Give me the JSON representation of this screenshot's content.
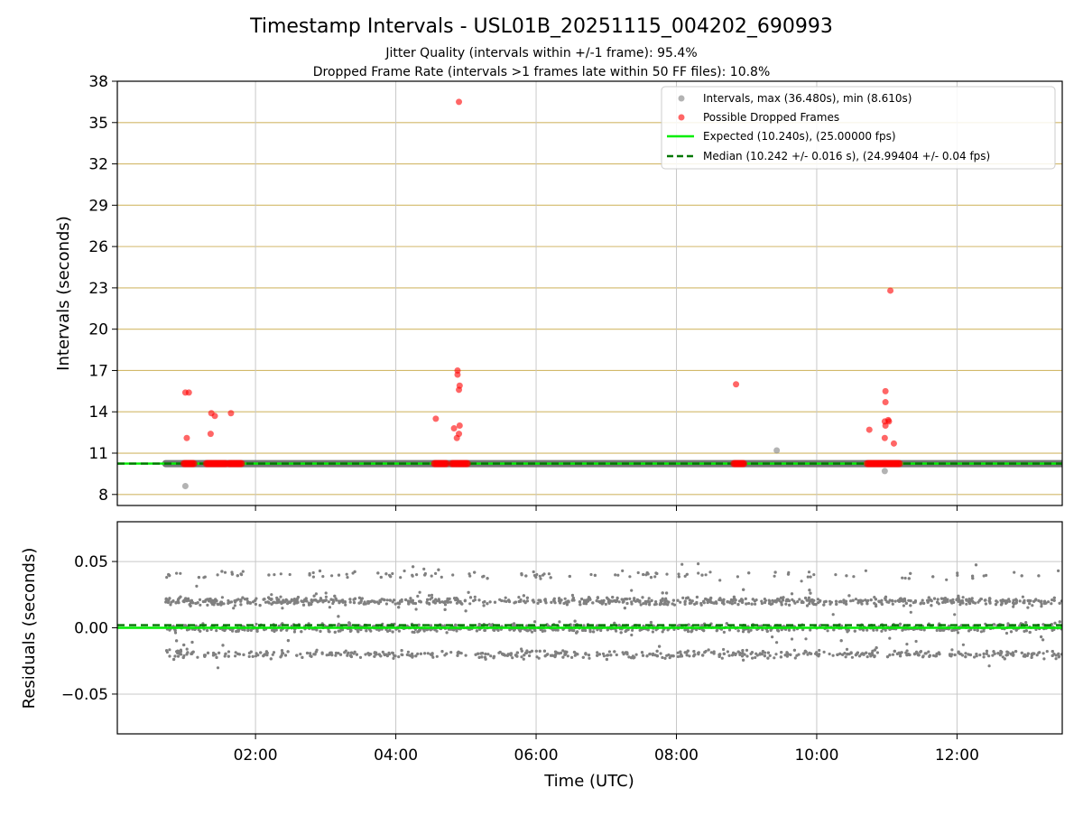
{
  "chart_data": [
    {
      "type": "scatter",
      "panel": "intervals",
      "title": "Timestamp Intervals - USL01B_20251115_004202_690993",
      "subtitle_lines": [
        "Jitter Quality (intervals within +/-1 frame): 95.4%",
        "Dropped Frame Rate (intervals >1 frames late within 50 FF files): 10.8%"
      ],
      "xlabel": "",
      "ylabel": "Intervals (seconds)",
      "xlim_hours": [
        0.03,
        13.5
      ],
      "ylim": [
        7.2,
        38
      ],
      "yticks": [
        8,
        11,
        14,
        17,
        20,
        23,
        26,
        29,
        32,
        35,
        38
      ],
      "ytick_labels": [
        "8",
        "11",
        "14",
        "17",
        "20",
        "23",
        "26",
        "29",
        "32",
        "35",
        "38"
      ],
      "xticks_hours": [
        2,
        4,
        6,
        8,
        10,
        12
      ],
      "grid": true,
      "legend_position": "top-right",
      "legend": [
        {
          "label": "Intervals, max (36.480s), min (8.610s)",
          "kind": "dot",
          "color": "#808080"
        },
        {
          "label": "Possible Dropped Frames",
          "kind": "dot",
          "color": "#ff0000"
        },
        {
          "label": "Expected (10.240s), (25.00000 fps)",
          "kind": "line",
          "color": "#00ee00"
        },
        {
          "label": "Median (10.242 +/- 0.016 s), (24.99404 +/- 0.04 fps)",
          "kind": "dash",
          "color": "#007700"
        }
      ],
      "expected": 10.24,
      "median": 10.242,
      "baseline_band": {
        "from_hours": 0.72,
        "to_hours": 13.5,
        "value": 10.24
      },
      "interval_outliers": [
        {
          "x": 1.0,
          "y": 8.61
        },
        {
          "x": 9.43,
          "y": 11.2
        },
        {
          "x": 10.97,
          "y": 9.7
        }
      ],
      "dropped_frames": [
        {
          "x": 1.0,
          "y": 15.4
        },
        {
          "x": 1.05,
          "y": 15.4
        },
        {
          "x": 1.02,
          "y": 12.1
        },
        {
          "x": 1.37,
          "y": 13.9
        },
        {
          "x": 1.42,
          "y": 13.7
        },
        {
          "x": 1.65,
          "y": 13.9
        },
        {
          "x": 1.36,
          "y": 12.4
        },
        {
          "x": 4.57,
          "y": 13.5
        },
        {
          "x": 4.83,
          "y": 12.8
        },
        {
          "x": 4.88,
          "y": 17.0
        },
        {
          "x": 4.88,
          "y": 16.7
        },
        {
          "x": 4.91,
          "y": 15.9
        },
        {
          "x": 4.9,
          "y": 15.6
        },
        {
          "x": 4.91,
          "y": 13.0
        },
        {
          "x": 4.9,
          "y": 12.4
        },
        {
          "x": 4.87,
          "y": 12.1
        },
        {
          "x": 4.9,
          "y": 36.5
        },
        {
          "x": 8.85,
          "y": 16.0
        },
        {
          "x": 10.75,
          "y": 12.7
        },
        {
          "x": 10.98,
          "y": 15.5
        },
        {
          "x": 10.98,
          "y": 14.7
        },
        {
          "x": 10.97,
          "y": 13.3
        },
        {
          "x": 11.02,
          "y": 13.4
        },
        {
          "x": 11.03,
          "y": 13.3
        },
        {
          "x": 10.98,
          "y": 13.0
        },
        {
          "x": 10.97,
          "y": 12.1
        },
        {
          "x": 11.1,
          "y": 11.7
        },
        {
          "x": 11.05,
          "y": 22.8
        }
      ],
      "dropped_frame_clusters": [
        {
          "from_hours": 0.98,
          "to_hours": 1.12,
          "y": 10.24
        },
        {
          "from_hours": 1.3,
          "to_hours": 1.58,
          "y": 10.24
        },
        {
          "from_hours": 1.62,
          "to_hours": 1.8,
          "y": 10.24
        },
        {
          "from_hours": 4.55,
          "to_hours": 4.72,
          "y": 10.24
        },
        {
          "from_hours": 4.8,
          "to_hours": 5.02,
          "y": 10.24
        },
        {
          "from_hours": 8.82,
          "to_hours": 8.96,
          "y": 10.24
        },
        {
          "from_hours": 10.72,
          "to_hours": 11.18,
          "y": 10.24
        }
      ]
    },
    {
      "type": "scatter",
      "panel": "residuals",
      "xlabel": "Time (UTC)",
      "ylabel": "Residuals (seconds)",
      "xlim_hours": [
        0.03,
        13.5
      ],
      "ylim": [
        -0.08,
        0.08
      ],
      "yticks": [
        -0.05,
        0.0,
        0.05
      ],
      "ytick_labels": [
        "−0.05",
        "0.00",
        "0.05"
      ],
      "xticks_hours": [
        2,
        4,
        6,
        8,
        10,
        12
      ],
      "xtick_labels": [
        "02:00",
        "04:00",
        "06:00",
        "08:00",
        "10:00",
        "12:00"
      ],
      "grid": true,
      "expected_residual": 0.0,
      "median_residual": 0.002,
      "residual_levels": [
        -0.02,
        0.0,
        0.02,
        0.04
      ],
      "residual_spread": 0.003,
      "point_count": 3400,
      "range_hours": [
        0.72,
        13.5
      ],
      "color": "#808080"
    }
  ]
}
